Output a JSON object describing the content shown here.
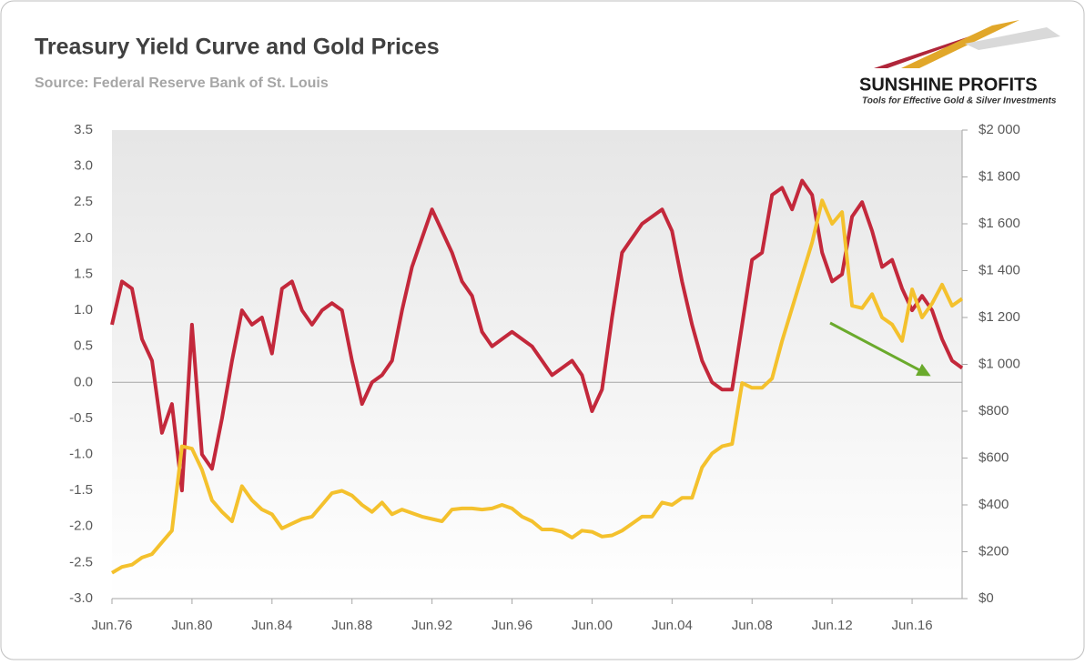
{
  "chart_data": {
    "type": "line",
    "title": "Treasury Yield Curve and Gold Prices",
    "subtitle": "Source: Federal Reserve Bank of St. Louis",
    "logo": {
      "name": "SUNSHINE PROFITS",
      "tagline": "Tools for Effective Gold & Silver Investments"
    },
    "categories": [
      "Jun.76",
      null,
      null,
      null,
      null,
      null,
      null,
      null,
      "Jun.80",
      null,
      null,
      null,
      null,
      null,
      null,
      null,
      "Jun.84",
      null,
      null,
      null,
      null,
      null,
      null,
      null,
      "Jun.88",
      null,
      null,
      null,
      null,
      null,
      null,
      null,
      "Jun.92",
      null,
      null,
      null,
      null,
      null,
      null,
      null,
      "Jun.96",
      null,
      null,
      null,
      null,
      null,
      null,
      null,
      "Jun.00",
      null,
      null,
      null,
      null,
      null,
      null,
      null,
      "Jun.04",
      null,
      null,
      null,
      null,
      null,
      null,
      null,
      "Jun.08",
      null,
      null,
      null,
      null,
      null,
      null,
      null,
      "Jun.12",
      null,
      null,
      null,
      null,
      null,
      null,
      null,
      "Jun.16",
      null,
      null,
      null,
      null,
      null
    ],
    "series": [
      {
        "color": "#c3283b",
        "axis": "y",
        "values": [
          0.8,
          1.4,
          1.3,
          0.6,
          0.3,
          -0.7,
          -0.3,
          -1.5,
          0.8,
          -1.0,
          -1.2,
          -0.5,
          0.3,
          1.0,
          0.8,
          0.9,
          0.4,
          1.3,
          1.4,
          1.0,
          0.8,
          1.0,
          1.1,
          1.0,
          0.3,
          -0.3,
          0.0,
          0.1,
          0.3,
          1.0,
          1.6,
          2.0,
          2.4,
          2.1,
          1.8,
          1.4,
          1.2,
          0.7,
          0.5,
          0.6,
          0.7,
          0.6,
          0.5,
          0.3,
          0.1,
          0.2,
          0.3,
          0.1,
          -0.4,
          -0.1,
          0.9,
          1.8,
          2.0,
          2.2,
          2.3,
          2.4,
          2.1,
          1.4,
          0.8,
          0.3,
          0.0,
          -0.1,
          -0.1,
          0.8,
          1.7,
          1.8,
          2.6,
          2.7,
          2.4,
          2.8,
          2.6,
          1.8,
          1.4,
          1.5,
          2.3,
          2.5,
          2.1,
          1.6,
          1.7,
          1.3,
          1.0,
          1.2,
          1.0,
          0.6,
          0.3,
          0.2
        ]
      },
      {
        "color": "#f4c12d",
        "axis": "y2",
        "values": [
          110,
          135,
          145,
          175,
          190,
          240,
          290,
          650,
          640,
          550,
          420,
          370,
          330,
          480,
          420,
          380,
          360,
          300,
          320,
          340,
          350,
          400,
          450,
          460,
          440,
          400,
          370,
          410,
          360,
          380,
          365,
          350,
          340,
          330,
          380,
          385,
          385,
          380,
          385,
          400,
          385,
          350,
          330,
          295,
          295,
          285,
          260,
          290,
          285,
          265,
          270,
          290,
          320,
          350,
          350,
          410,
          400,
          430,
          430,
          560,
          620,
          650,
          660,
          920,
          900,
          900,
          940,
          1100,
          1240,
          1380,
          1520,
          1700,
          1600,
          1650,
          1250,
          1240,
          1300,
          1200,
          1170,
          1100,
          1320,
          1200,
          1260,
          1340,
          1250,
          1280
        ]
      }
    ],
    "ylim": [
      -3,
      3.5
    ],
    "yticks": [
      3.5,
      {
        "value": 3,
        "label": "3.0"
      },
      2.5,
      {
        "value": 2,
        "label": "2.0"
      },
      1.5,
      {
        "value": 1,
        "label": "1.0"
      },
      0.5,
      {
        "value": 0,
        "label": "0.0"
      },
      -0.5,
      {
        "value": -1,
        "label": "-1.0"
      },
      -1.5,
      {
        "value": -2,
        "label": "-2.0"
      },
      -2.5,
      {
        "value": -3,
        "label": "-3.0"
      }
    ],
    "y2lim": [
      0,
      2000
    ],
    "y2ticks": [
      {
        "value": 2000,
        "label": "$2 000"
      },
      {
        "value": 1800,
        "label": "$1 800"
      },
      {
        "value": 1600,
        "label": "$1 600"
      },
      {
        "value": 1400,
        "label": "$1 400"
      },
      {
        "value": 1200,
        "label": "$1 200"
      },
      {
        "value": 1000,
        "label": "$1 000"
      },
      {
        "value": 800,
        "label": "$800"
      },
      {
        "value": 600,
        "label": "$600"
      },
      {
        "value": 400,
        "label": "$400"
      },
      {
        "value": 200,
        "label": "$200"
      },
      {
        "value": 0,
        "label": "$0"
      }
    ]
  }
}
